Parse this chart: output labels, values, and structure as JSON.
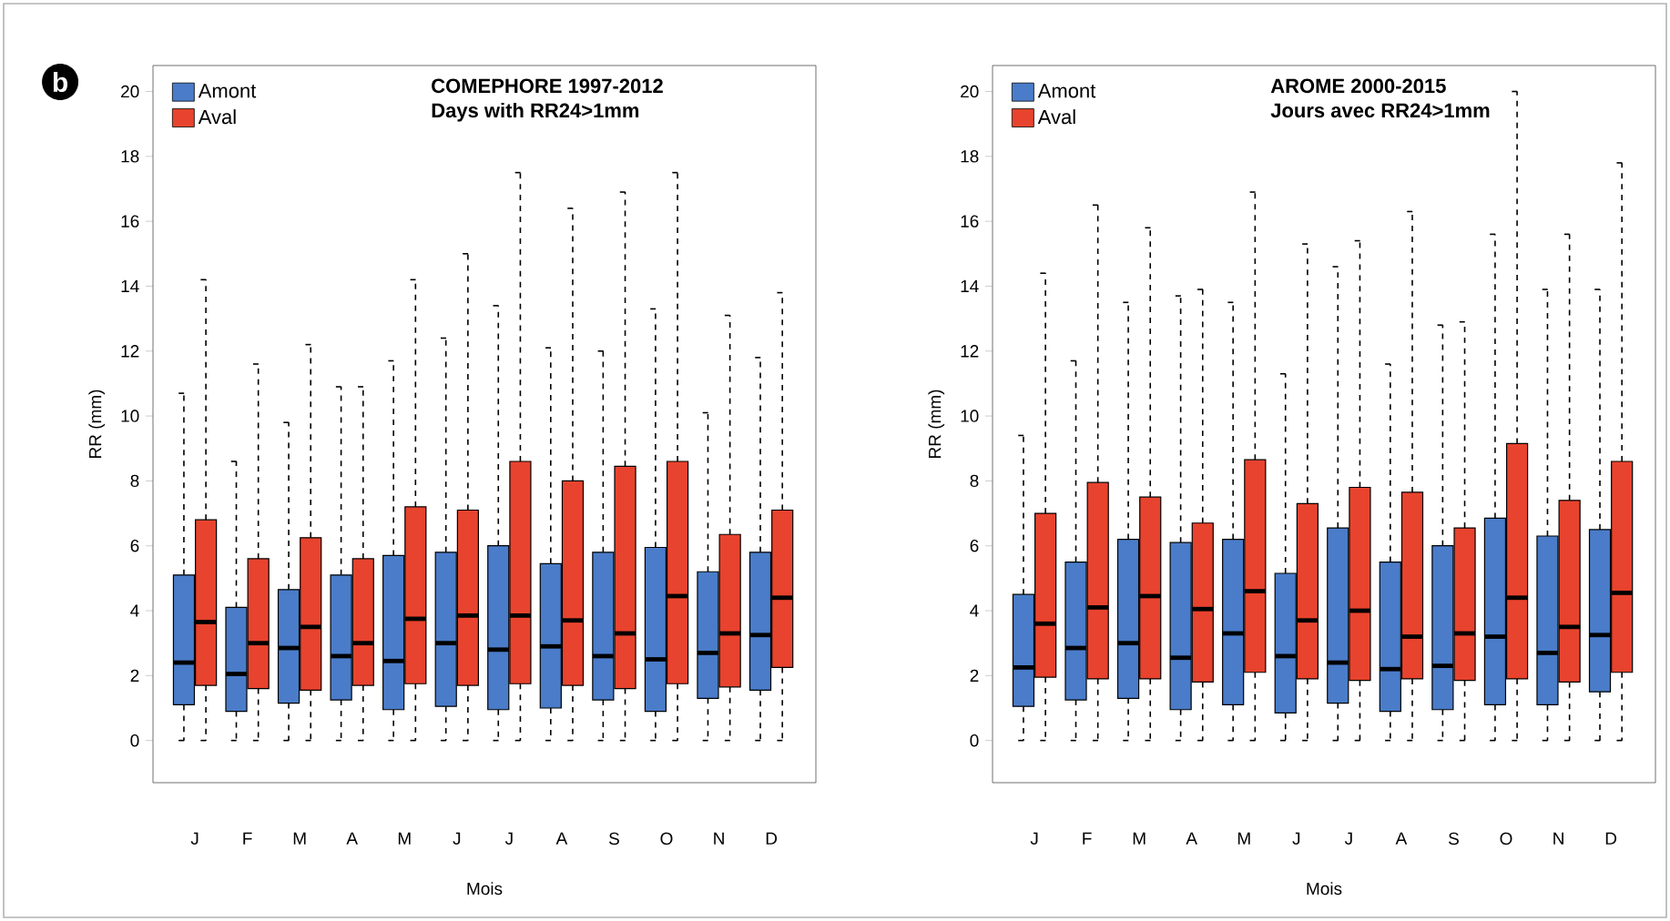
{
  "chart_data": [
    {
      "type": "box",
      "title": "COMEPHORE 1997-2012",
      "subtitle": "Days with RR24>1mm",
      "xlabel": "Mois",
      "ylabel": "RR (mm)",
      "categories": [
        "J",
        "F",
        "M",
        "A",
        "M",
        "J",
        "J",
        "A",
        "S",
        "O",
        "N",
        "D"
      ],
      "ylim": [
        -1.3,
        20.8
      ],
      "yticks": [
        0,
        2,
        4,
        6,
        8,
        10,
        12,
        14,
        16,
        18,
        20
      ],
      "legend": "top left",
      "annotations": [
        "b"
      ],
      "series": [
        {
          "name": "Amont",
          "color": "#4a7cc9",
          "boxes": [
            {
              "low": 0,
              "q1": 1.1,
              "median": 2.4,
              "q3": 5.1,
              "high": 10.7
            },
            {
              "low": 0,
              "q1": 0.9,
              "median": 2.05,
              "q3": 4.1,
              "high": 8.6
            },
            {
              "low": 0,
              "q1": 1.15,
              "median": 2.85,
              "q3": 4.65,
              "high": 9.8
            },
            {
              "low": 0,
              "q1": 1.25,
              "median": 2.6,
              "q3": 5.1,
              "high": 10.9
            },
            {
              "low": 0,
              "q1": 0.95,
              "median": 2.45,
              "q3": 5.7,
              "high": 11.7
            },
            {
              "low": 0,
              "q1": 1.05,
              "median": 3.0,
              "q3": 5.8,
              "high": 12.4
            },
            {
              "low": 0,
              "q1": 0.95,
              "median": 2.8,
              "q3": 6.0,
              "high": 13.4
            },
            {
              "low": 0,
              "q1": 1.0,
              "median": 2.9,
              "q3": 5.45,
              "high": 12.1
            },
            {
              "low": 0,
              "q1": 1.25,
              "median": 2.6,
              "q3": 5.8,
              "high": 12.0
            },
            {
              "low": 0,
              "q1": 0.9,
              "median": 2.5,
              "q3": 5.95,
              "high": 13.3
            },
            {
              "low": 0,
              "q1": 1.3,
              "median": 2.7,
              "q3": 5.2,
              "high": 10.1
            },
            {
              "low": 0,
              "q1": 1.55,
              "median": 3.25,
              "q3": 5.8,
              "high": 11.8
            }
          ]
        },
        {
          "name": "Aval",
          "color": "#e8432e",
          "boxes": [
            {
              "low": 0,
              "q1": 1.7,
              "median": 3.65,
              "q3": 6.8,
              "high": 14.2
            },
            {
              "low": 0,
              "q1": 1.6,
              "median": 3.0,
              "q3": 5.6,
              "high": 11.6
            },
            {
              "low": 0,
              "q1": 1.55,
              "median": 3.5,
              "q3": 6.25,
              "high": 12.2
            },
            {
              "low": 0,
              "q1": 1.7,
              "median": 3.0,
              "q3": 5.6,
              "high": 10.9
            },
            {
              "low": 0,
              "q1": 1.75,
              "median": 3.75,
              "q3": 7.2,
              "high": 14.2
            },
            {
              "low": 0,
              "q1": 1.7,
              "median": 3.85,
              "q3": 7.1,
              "high": 15.0
            },
            {
              "low": 0,
              "q1": 1.75,
              "median": 3.85,
              "q3": 8.6,
              "high": 17.5
            },
            {
              "low": 0,
              "q1": 1.7,
              "median": 3.7,
              "q3": 8.0,
              "high": 16.4
            },
            {
              "low": 0,
              "q1": 1.6,
              "median": 3.3,
              "q3": 8.45,
              "high": 16.9
            },
            {
              "low": 0,
              "q1": 1.75,
              "median": 4.45,
              "q3": 8.6,
              "high": 17.5
            },
            {
              "low": 0,
              "q1": 1.65,
              "median": 3.3,
              "q3": 6.35,
              "high": 13.1
            },
            {
              "low": 0,
              "q1": 2.25,
              "median": 4.4,
              "q3": 7.1,
              "high": 13.8
            }
          ]
        }
      ]
    },
    {
      "type": "box",
      "title": "AROME 2000-2015",
      "subtitle": "Jours avec RR24>1mm",
      "xlabel": "Mois",
      "ylabel": "RR (mm)",
      "categories": [
        "J",
        "F",
        "M",
        "A",
        "M",
        "J",
        "J",
        "A",
        "S",
        "O",
        "N",
        "D"
      ],
      "ylim": [
        -1.3,
        20.8
      ],
      "yticks": [
        0,
        2,
        4,
        6,
        8,
        10,
        12,
        14,
        16,
        18,
        20
      ],
      "legend": "top left",
      "series": [
        {
          "name": "Amont",
          "color": "#4a7cc9",
          "boxes": [
            {
              "low": 0,
              "q1": 1.05,
              "median": 2.25,
              "q3": 4.5,
              "high": 9.4
            },
            {
              "low": 0,
              "q1": 1.25,
              "median": 2.85,
              "q3": 5.5,
              "high": 11.7
            },
            {
              "low": 0,
              "q1": 1.3,
              "median": 3.0,
              "q3": 6.2,
              "high": 13.5
            },
            {
              "low": 0,
              "q1": 0.95,
              "median": 2.55,
              "q3": 6.1,
              "high": 13.7
            },
            {
              "low": 0,
              "q1": 1.1,
              "median": 3.3,
              "q3": 6.2,
              "high": 13.5
            },
            {
              "low": 0,
              "q1": 0.85,
              "median": 2.6,
              "q3": 5.15,
              "high": 11.3
            },
            {
              "low": 0,
              "q1": 1.15,
              "median": 2.4,
              "q3": 6.55,
              "high": 14.6
            },
            {
              "low": 0,
              "q1": 0.9,
              "median": 2.2,
              "q3": 5.5,
              "high": 11.6
            },
            {
              "low": 0,
              "q1": 0.95,
              "median": 2.3,
              "q3": 6.0,
              "high": 12.8
            },
            {
              "low": 0,
              "q1": 1.1,
              "median": 3.2,
              "q3": 6.85,
              "high": 15.6
            },
            {
              "low": 0,
              "q1": 1.1,
              "median": 2.7,
              "q3": 6.3,
              "high": 13.9
            },
            {
              "low": 0,
              "q1": 1.5,
              "median": 3.25,
              "q3": 6.5,
              "high": 13.9
            }
          ]
        },
        {
          "name": "Aval",
          "color": "#e8432e",
          "boxes": [
            {
              "low": 0,
              "q1": 1.95,
              "median": 3.6,
              "q3": 7.0,
              "high": 14.4
            },
            {
              "low": 0,
              "q1": 1.9,
              "median": 4.1,
              "q3": 7.95,
              "high": 16.5
            },
            {
              "low": 0,
              "q1": 1.9,
              "median": 4.45,
              "q3": 7.5,
              "high": 15.8
            },
            {
              "low": 0,
              "q1": 1.8,
              "median": 4.05,
              "q3": 6.7,
              "high": 13.9
            },
            {
              "low": 0,
              "q1": 2.1,
              "median": 4.6,
              "q3": 8.65,
              "high": 16.9
            },
            {
              "low": 0,
              "q1": 1.9,
              "median": 3.7,
              "q3": 7.3,
              "high": 15.3
            },
            {
              "low": 0,
              "q1": 1.85,
              "median": 4.0,
              "q3": 7.8,
              "high": 15.4
            },
            {
              "low": 0,
              "q1": 1.9,
              "median": 3.2,
              "q3": 7.65,
              "high": 16.3
            },
            {
              "low": 0,
              "q1": 1.85,
              "median": 3.3,
              "q3": 6.55,
              "high": 12.9
            },
            {
              "low": 0,
              "q1": 1.9,
              "median": 4.4,
              "q3": 9.15,
              "high": 20.0
            },
            {
              "low": 0,
              "q1": 1.8,
              "median": 3.5,
              "q3": 7.4,
              "high": 15.6
            },
            {
              "low": 0,
              "q1": 2.1,
              "median": 4.55,
              "q3": 8.6,
              "high": 17.8
            }
          ]
        }
      ]
    }
  ]
}
